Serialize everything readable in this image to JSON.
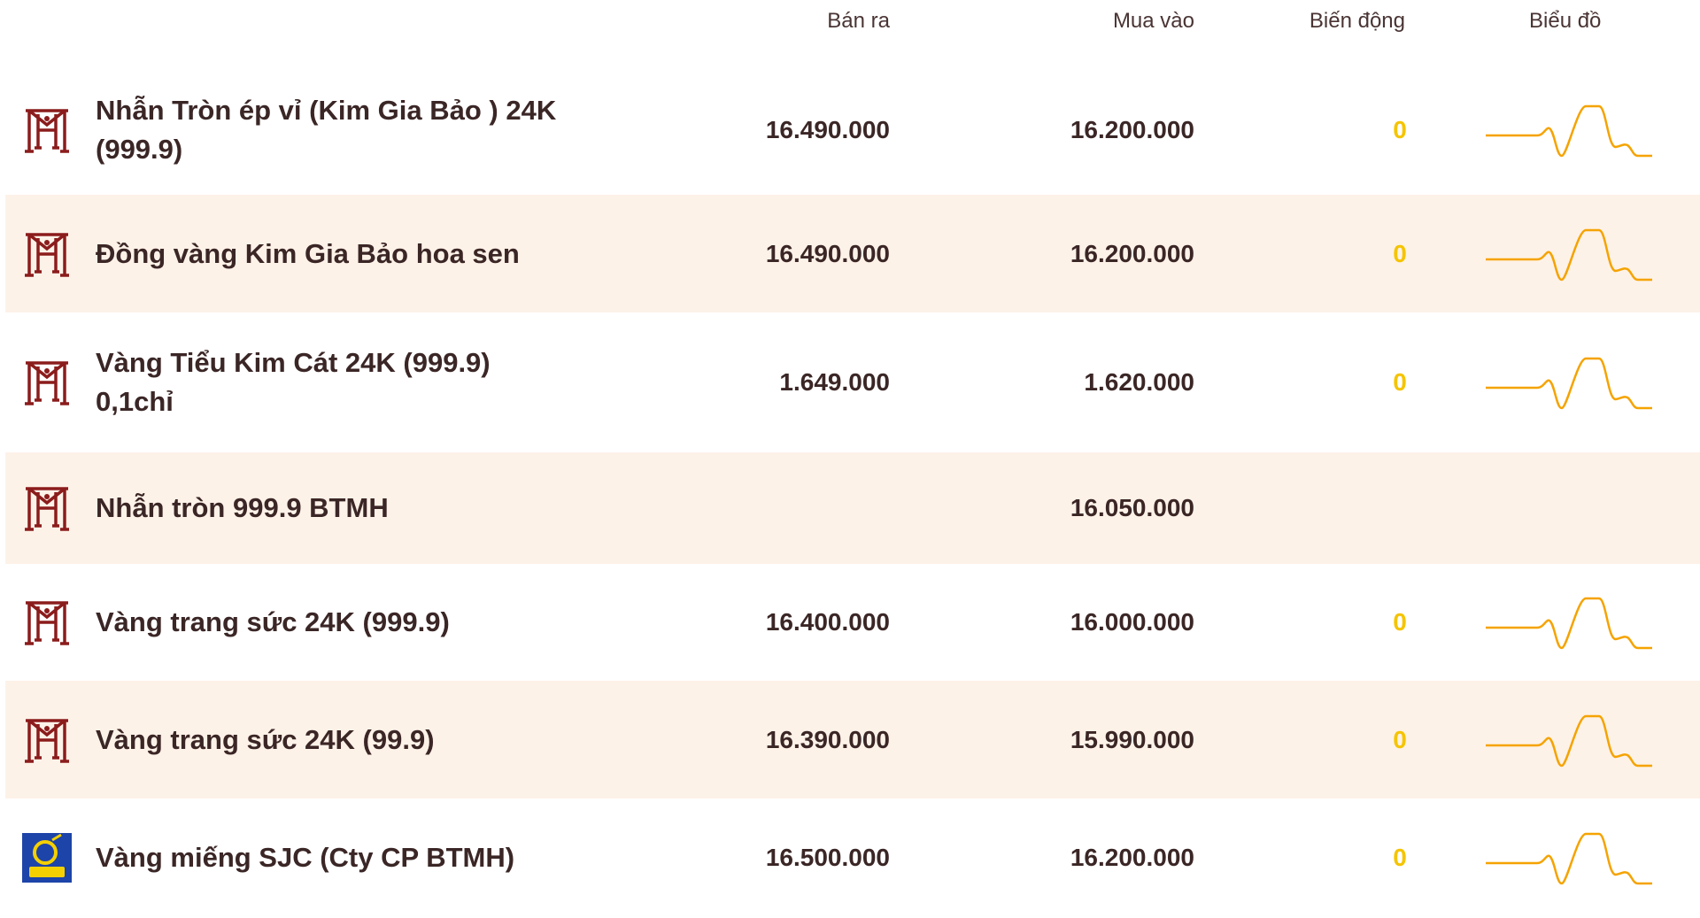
{
  "table": {
    "header": [
      "Bán ra",
      "Mua vào",
      "Biến động",
      "Biểu đồ"
    ],
    "rows": [
      [
        "Nhẫn Tròn ép vỉ (Kim Gia Bảo ) 24K (999.9)",
        "16.490.000",
        "16.200.000",
        0
      ],
      [
        "Đồng vàng Kim Gia Bảo hoa sen",
        "16.490.000",
        "16.200.000",
        0
      ],
      [
        "Vàng Tiểu Kim Cát 24K (999.9) 0,1chỉ",
        "1.649.000",
        "1.620.000",
        0
      ],
      [
        "Nhẫn tròn 999.9 BTMH",
        null,
        "16.050.000",
        null
      ],
      [
        "Vàng trang sức 24K (999.9)",
        "16.400.000",
        "16.000.000",
        0
      ],
      [
        "Vàng trang sức 24K (99.9)",
        "16.390.000",
        "15.990.000",
        0
      ],
      [
        "Vàng miếng SJC (Cty CP BTMH)",
        "16.500.000",
        "16.200.000",
        0
      ]
    ]
  }
}
